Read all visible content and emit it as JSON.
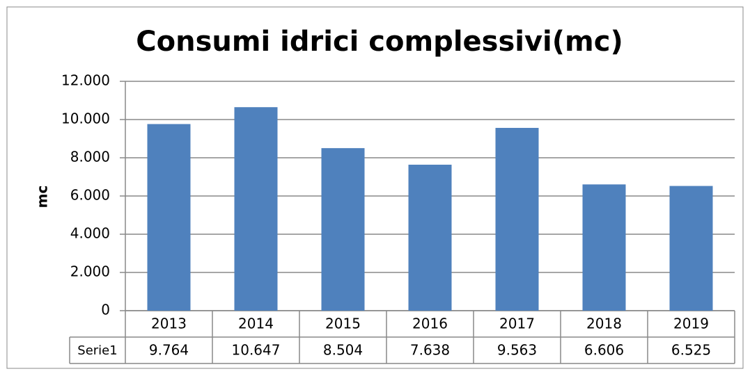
{
  "chart_data": {
    "type": "bar",
    "title": "Consumi idrici complessivi(mc)",
    "y_label": "mc",
    "categories": [
      "2013",
      "2014",
      "2015",
      "2016",
      "2017",
      "2018",
      "2019"
    ],
    "series": [
      {
        "name": "Serie1",
        "color": "#4f81bd",
        "values": [
          9764,
          10647,
          8504,
          7638,
          9563,
          6606,
          6525
        ],
        "value_labels": [
          "9.764",
          "10.647",
          "8.504",
          "7.638",
          "9.563",
          "6.606",
          "6.525"
        ]
      }
    ],
    "ylim": [
      0,
      12000
    ],
    "yticks": [
      0,
      {
        "value": 2000,
        "label": "2.000"
      },
      {
        "value": 4000,
        "label": "4.000"
      },
      {
        "value": 6000,
        "label": "6.000"
      },
      {
        "value": 8000,
        "label": "8.000"
      },
      {
        "value": 10000,
        "label": "10.000"
      },
      {
        "value": 12000,
        "label": "12.000"
      }
    ],
    "grid": true
  }
}
